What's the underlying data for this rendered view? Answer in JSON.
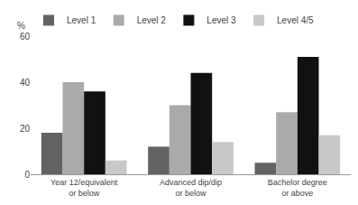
{
  "chart_data": {
    "type": "bar",
    "categories": [
      "Year 12/equivalent or below",
      "Advanced dip/dip or below",
      "Bachelor degree or above"
    ],
    "series": [
      {
        "name": "Level 1",
        "color": "#636363",
        "values": [
          18,
          12,
          5
        ]
      },
      {
        "name": "Level 2",
        "color": "#aaaaaa",
        "values": [
          40,
          30,
          27
        ]
      },
      {
        "name": "Level 3",
        "color": "#111111",
        "values": [
          36,
          44,
          51
        ]
      },
      {
        "name": "Level 4/5",
        "color": "#c8c8c8",
        "values": [
          6,
          14,
          17
        ]
      }
    ],
    "ylabel": "%",
    "ylim": [
      0,
      60
    ],
    "yticks": [
      0,
      20,
      40,
      60
    ],
    "grid": false,
    "legend": "upper left"
  }
}
